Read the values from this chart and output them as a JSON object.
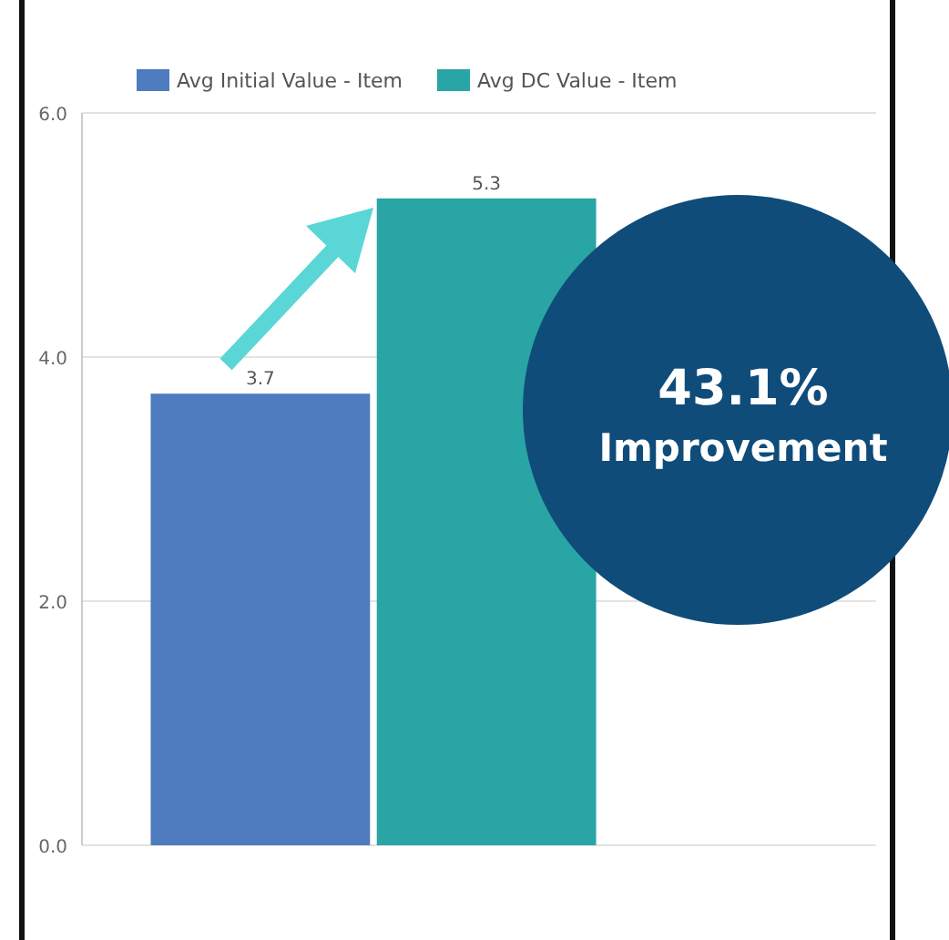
{
  "chart_data": {
    "type": "bar",
    "categories": [
      null
    ],
    "series": [
      {
        "name": "Avg Initial Value - Item",
        "color": "#4f7bbf",
        "values": [
          3.7
        ]
      },
      {
        "name": "Avg DC Value - Item",
        "color": "#2aa5a5",
        "values": [
          5.3
        ]
      }
    ],
    "ylim": [
      0,
      6
    ],
    "yticks": [
      {
        "value": 0,
        "label": "0.0"
      },
      {
        "value": 2,
        "label": "2.0"
      },
      {
        "value": 4,
        "label": "4.0"
      },
      {
        "value": 6,
        "label": "6.0"
      }
    ],
    "grid": "y",
    "legend": "top",
    "data_labels": true,
    "annotations": [
      "43.1%",
      "Improvement"
    ]
  }
}
